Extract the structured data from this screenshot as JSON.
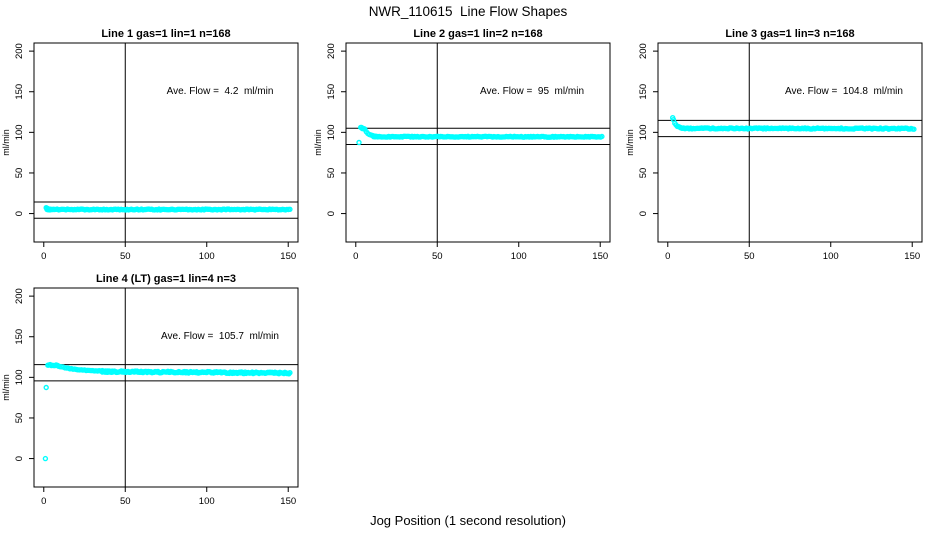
{
  "page": {
    "title": "NWR_110615  Line Flow Shapes",
    "xlabel": "Jog Position (1 second resolution)"
  },
  "colors": {
    "points": "#00ffff",
    "axis": "#000000",
    "background": "#ffffff"
  },
  "chart_data": [
    {
      "type": "scatter",
      "title": "Line 1 gas=1 lin=1 n=168",
      "ylabel": "ml/min",
      "annotation": "Ave. Flow =  4.2  ml/min",
      "ave_flow_ml_min": 4.2,
      "n": 168,
      "xlim": [
        -6,
        156
      ],
      "ylim": [
        -35,
        210
      ],
      "xticks": [
        0,
        50,
        100,
        150
      ],
      "yticks": [
        0,
        50,
        100,
        150,
        200
      ],
      "vline_x": 50,
      "hlines_y": [
        14.2,
        -5.8
      ],
      "grid": false,
      "series": [
        {
          "kind": "points",
          "pts": [
            [
              1.5,
              7.2
            ]
          ]
        },
        {
          "kind": "decay",
          "x0": 2,
          "x1": 6,
          "yFrom": 6.8,
          "yTo": 5.1,
          "n": 5
        },
        {
          "kind": "band",
          "x0": 2,
          "x1": 151,
          "yStart": 5.0,
          "yEnd": 5.0,
          "noise": 0.55,
          "n": 168
        }
      ]
    },
    {
      "type": "scatter",
      "title": "Line 2 gas=1 lin=2 n=168",
      "ylabel": "ml/min",
      "annotation": "Ave. Flow =  95  ml/min",
      "ave_flow_ml_min": 95,
      "n": 168,
      "xlim": [
        -6,
        156
      ],
      "ylim": [
        -35,
        210
      ],
      "xticks": [
        0,
        50,
        100,
        150
      ],
      "yticks": [
        0,
        50,
        100,
        150,
        200
      ],
      "vline_x": 50,
      "hlines_y": [
        105,
        85
      ],
      "grid": false,
      "series": [
        {
          "kind": "points",
          "pts": [
            [
              2,
              87.5
            ]
          ]
        },
        {
          "kind": "band",
          "x0": 3,
          "x1": 5.5,
          "yStart": 105.5,
          "yEnd": 104.5,
          "noise": 0.8,
          "n": 6
        },
        {
          "kind": "decay",
          "x0": 5.5,
          "x1": 13,
          "yFrom": 104,
          "yTo": 94.8,
          "n": 9
        },
        {
          "kind": "band",
          "x0": 11,
          "x1": 151,
          "yStart": 94.7,
          "yEnd": 94.5,
          "noise": 0.55,
          "n": 168
        }
      ]
    },
    {
      "type": "scatter",
      "title": "Line 3 gas=1 lin=3 n=168",
      "ylabel": "ml/min",
      "annotation": "Ave. Flow =  104.8  ml/min",
      "ave_flow_ml_min": 104.8,
      "n": 168,
      "xlim": [
        -6,
        156
      ],
      "ylim": [
        -35,
        210
      ],
      "xticks": [
        0,
        50,
        100,
        150
      ],
      "yticks": [
        0,
        50,
        100,
        150,
        200
      ],
      "vline_x": 50,
      "hlines_y": [
        114.8,
        94.8
      ],
      "grid": false,
      "series": [
        {
          "kind": "points",
          "pts": [
            [
              3,
              118
            ]
          ]
        },
        {
          "kind": "decay",
          "x0": 3.5,
          "x1": 9,
          "yFrom": 115.5,
          "yTo": 105,
          "n": 8
        },
        {
          "kind": "band",
          "x0": 8,
          "x1": 151,
          "yStart": 104.9,
          "yEnd": 104.6,
          "noise": 0.75,
          "n": 168
        }
      ]
    },
    {
      "type": "scatter",
      "title": "Line 4 (LT) gas=1 lin=4 n=3",
      "ylabel": "ml/min",
      "annotation": "Ave. Flow =  105.7  ml/min",
      "ave_flow_ml_min": 105.7,
      "n": 3,
      "xlim": [
        -6,
        156
      ],
      "ylim": [
        -35,
        210
      ],
      "xticks": [
        0,
        50,
        100,
        150
      ],
      "yticks": [
        0,
        50,
        100,
        150,
        200
      ],
      "vline_x": 50,
      "hlines_y": [
        115.7,
        95.7
      ],
      "grid": false,
      "series": [
        {
          "kind": "points",
          "pts": [
            [
              1,
              0
            ],
            [
              1.5,
              87.5
            ]
          ]
        },
        {
          "kind": "band",
          "x0": 2.5,
          "x1": 9,
          "yStart": 115.5,
          "yEnd": 114.5,
          "noise": 0.9,
          "n": 10
        },
        {
          "kind": "decay",
          "x0": 9,
          "x1": 42,
          "yFrom": 114,
          "yTo": 107.5,
          "n": 34
        },
        {
          "kind": "band",
          "x0": 36,
          "x1": 151,
          "yStart": 107.2,
          "yEnd": 105.2,
          "noise": 1.0,
          "n": 190
        }
      ]
    }
  ]
}
